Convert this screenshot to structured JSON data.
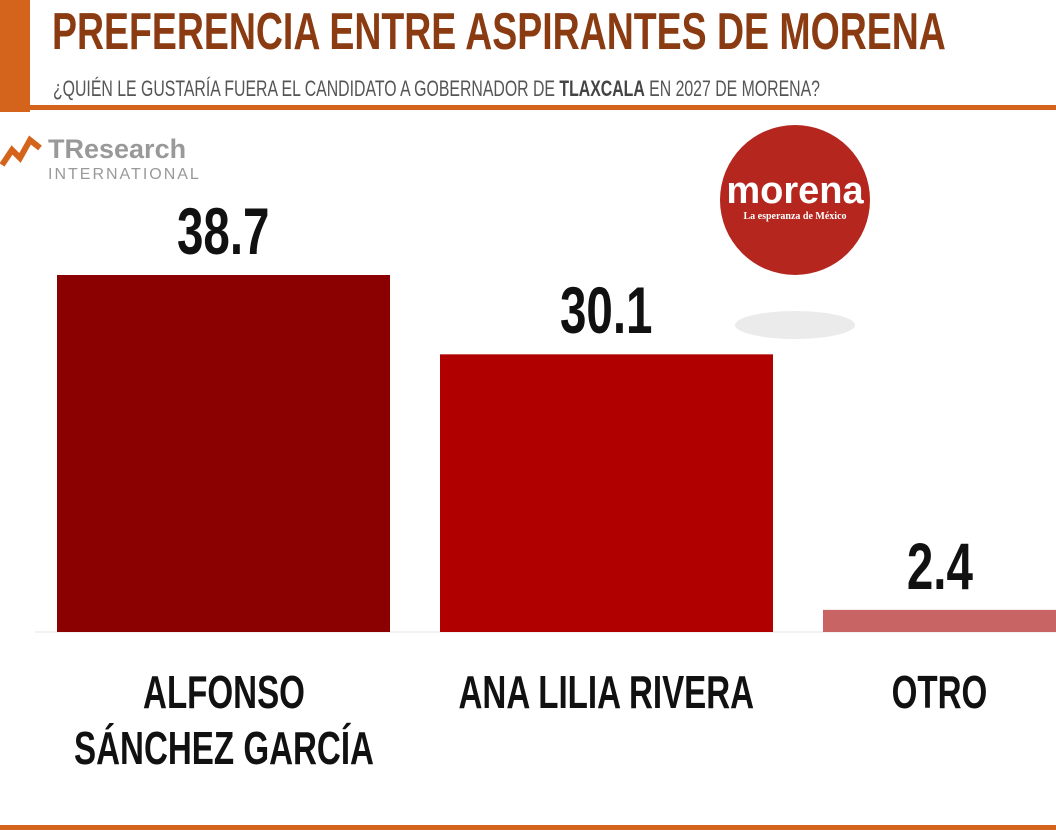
{
  "chart_data": {
    "type": "bar",
    "title": "PREFERENCIA ENTRE ASPIRANTES DE MORENA",
    "subtitle_parts": [
      "¿QUIÉN LE GUSTARÍA FUERA EL CANDIDATO A GOBERNADOR DE ",
      "TLAXCALA",
      " EN 2027 DE MORENA?"
    ],
    "categories": [
      "ALFONSO SÁNCHEZ GARCÍA",
      "ANA LILIA RIVERA",
      "OTRO"
    ],
    "values": [
      38.7,
      30.1,
      2.4
    ],
    "colors": [
      "#8b0000",
      "#b00000",
      "#c86464"
    ]
  },
  "logos": {
    "brand": "TResearch",
    "brand_sub": "INTERNATIONAL",
    "party": "morena",
    "party_tagline": "La esperanza de México"
  }
}
